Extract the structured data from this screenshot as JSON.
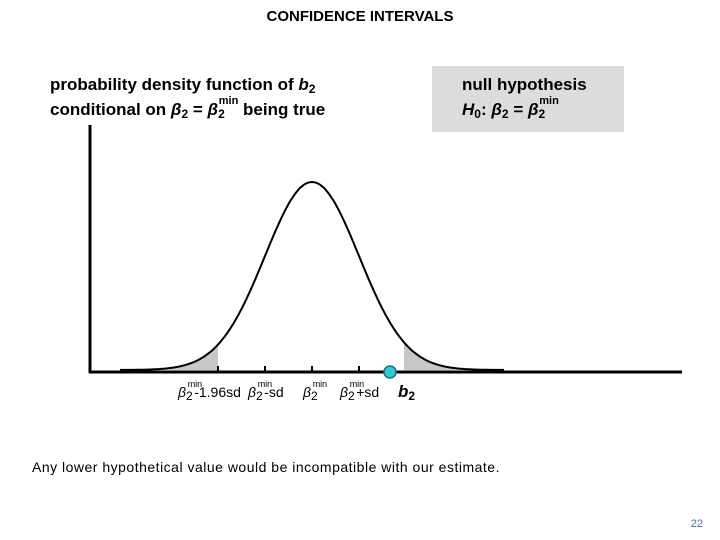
{
  "title": "CONFIDENCE INTERVALS",
  "pdf_label": {
    "line1": [
      "probability density function of ",
      "b",
      "2"
    ],
    "line2": [
      "conditional on ",
      "β",
      "2",
      " = ",
      "β",
      "2",
      "min",
      " being true"
    ]
  },
  "hypothesis": {
    "title": "null hypothesis",
    "formula": [
      "H",
      "0",
      ": ",
      "β",
      "2",
      " = ",
      "β",
      "2",
      "min"
    ]
  },
  "axis_labels": [
    [
      "β",
      "2",
      "min",
      "-1.96sd"
    ],
    [
      "β",
      "2",
      "min",
      "-sd"
    ],
    [
      "β",
      "2",
      "min"
    ],
    [
      "β",
      "2",
      "min",
      "+sd"
    ],
    [
      "b",
      "2"
    ]
  ],
  "note": "Any lower hypothetical value would be incompatible with our estimate.",
  "page_number": "22"
}
